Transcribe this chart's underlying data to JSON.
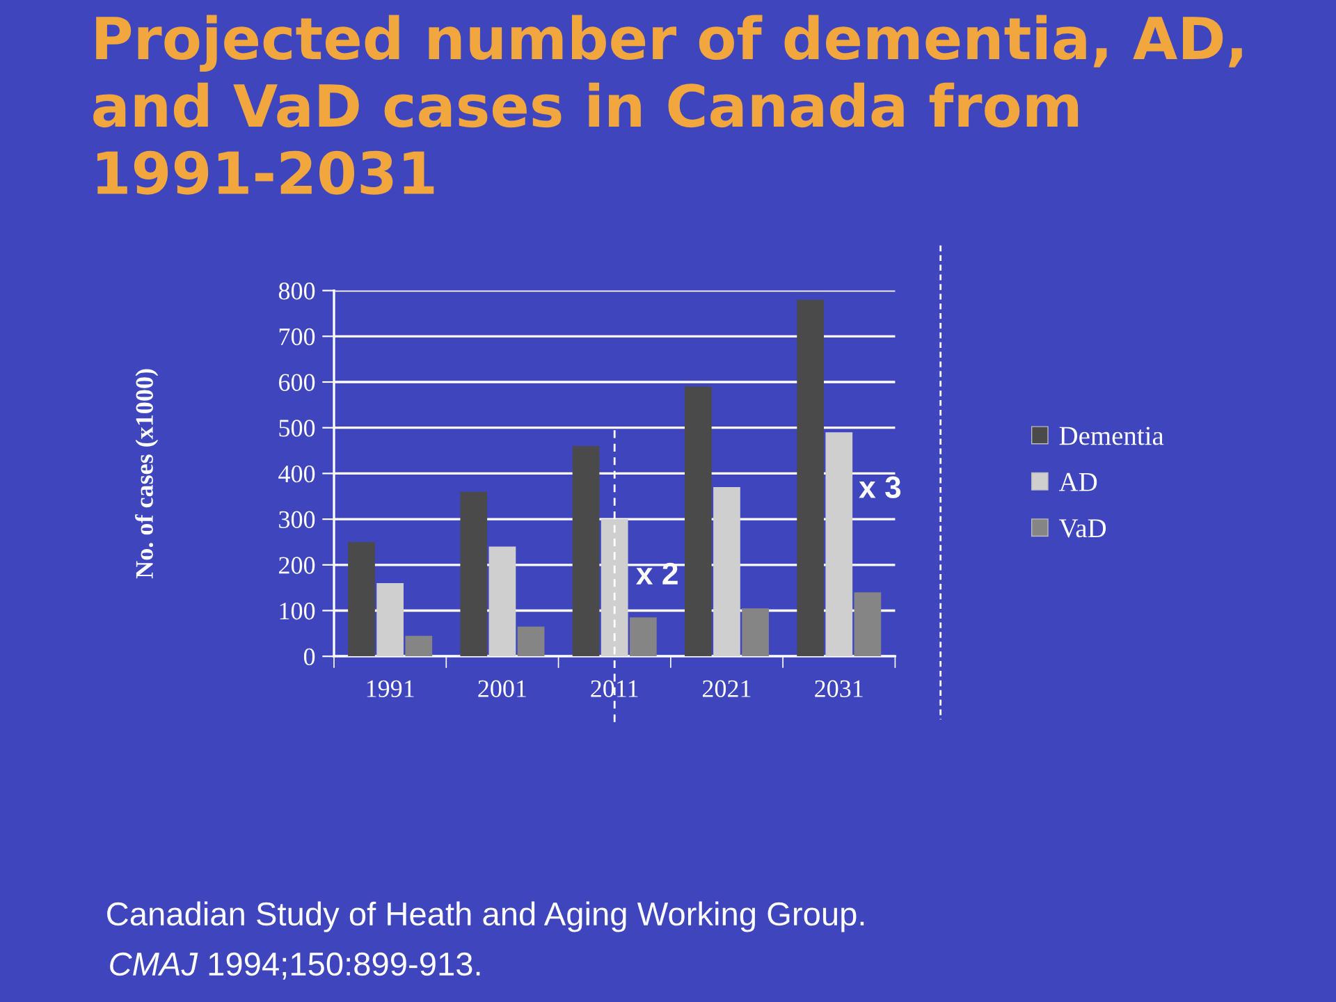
{
  "chart_data": {
    "type": "bar",
    "title": "Projected number of dementia, AD, and VaD cases in Canada from 1991-2031",
    "ylabel": "No. of cases (x1000)",
    "categories": [
      "1991",
      "2001",
      "2011",
      "2021",
      "2031"
    ],
    "series": [
      {
        "name": "Dementia",
        "color": "#4a4a4a",
        "values": [
          250,
          360,
          460,
          590,
          780
        ]
      },
      {
        "name": "AD",
        "color": "#cfcfcf",
        "values": [
          160,
          240,
          300,
          370,
          490
        ]
      },
      {
        "name": "VaD",
        "color": "#858585",
        "values": [
          45,
          65,
          85,
          105,
          140
        ]
      }
    ],
    "ylim": [
      0,
      800
    ],
    "yticks": [
      0,
      100,
      200,
      300,
      400,
      500,
      600,
      700,
      800
    ],
    "grid": "y",
    "legend": "right",
    "ref_lines": [
      {
        "axis": "x",
        "value": "2011",
        "color": "#ffffff",
        "line_style": "dashed"
      }
    ],
    "annotations": [
      {
        "text": "x 2",
        "x": "2011",
        "y": 175
      },
      "x 3",
      "Canadian Study of Heath and Aging Working Group.",
      "CMAJ 1994;150:899-913."
    ]
  }
}
